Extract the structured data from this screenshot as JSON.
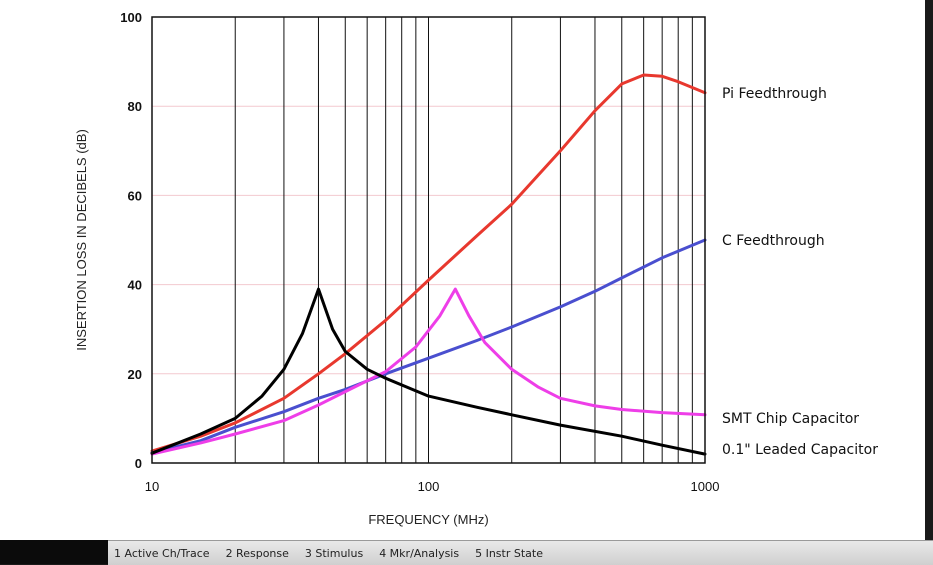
{
  "chart_data": {
    "type": "line",
    "xscale": "log",
    "xlim": [
      10,
      1000
    ],
    "ylim": [
      0,
      100
    ],
    "xlabel": "FREQUENCY (MHz)",
    "ylabel": "INSERTION LOSS IN DECIBELS (dB)",
    "xticks": [
      10,
      100,
      1000
    ],
    "yticks": [
      0,
      20,
      40,
      60,
      80,
      100
    ],
    "grid_x": [
      10,
      20,
      30,
      40,
      50,
      60,
      70,
      80,
      90,
      100,
      200,
      300,
      400,
      500,
      600,
      700,
      800,
      900,
      1000
    ],
    "grid_y_minor": [
      20,
      40,
      60,
      80
    ],
    "series": [
      {
        "name": "Pi Feedthrough",
        "color": "#e8382e",
        "x": [
          10,
          15,
          20,
          30,
          40,
          50,
          70,
          100,
          150,
          200,
          300,
          400,
          500,
          600,
          700,
          800,
          1000
        ],
        "y": [
          2.7,
          6,
          9,
          14.5,
          20,
          24.5,
          32,
          41,
          51,
          58,
          70,
          79,
          85,
          87,
          86.7,
          85.5,
          83
        ]
      },
      {
        "name": "C Feedthrough",
        "color": "#4a4fcf",
        "x": [
          10,
          15,
          20,
          30,
          40,
          50,
          70,
          100,
          150,
          200,
          300,
          400,
          500,
          700,
          1000
        ],
        "y": [
          2.3,
          5,
          8,
          11.5,
          14.5,
          16.5,
          20,
          23.5,
          27.5,
          30.5,
          35,
          38.5,
          41.5,
          46,
          50
        ]
      },
      {
        "name": "SMT Chip Capacitor",
        "color": "#ee3ee8",
        "x": [
          10,
          15,
          20,
          30,
          40,
          50,
          70,
          90,
          110,
          125,
          140,
          160,
          200,
          250,
          300,
          400,
          500,
          700,
          1000
        ],
        "y": [
          2,
          4.5,
          6.5,
          9.5,
          13,
          16,
          20.5,
          26,
          33,
          39,
          33,
          27,
          21,
          17,
          14.5,
          12.8,
          12,
          11.3,
          10.8
        ]
      },
      {
        "name": "0.1\" Leaded Capacitor",
        "color": "#000000",
        "x": [
          10,
          15,
          20,
          25,
          30,
          35,
          40,
          45,
          50,
          60,
          70,
          100,
          150,
          200,
          300,
          500,
          700,
          1000
        ],
        "y": [
          2.2,
          6.5,
          10,
          15,
          21,
          29,
          39,
          30,
          25,
          21,
          19,
          15,
          12.5,
          10.8,
          8.5,
          6,
          4,
          2
        ]
      }
    ]
  },
  "taskbar": {
    "items": [
      "1 Active Ch/Trace",
      "2 Response",
      "3 Stimulus",
      "4 Mkr/Analysis",
      "5 Instr State"
    ]
  }
}
